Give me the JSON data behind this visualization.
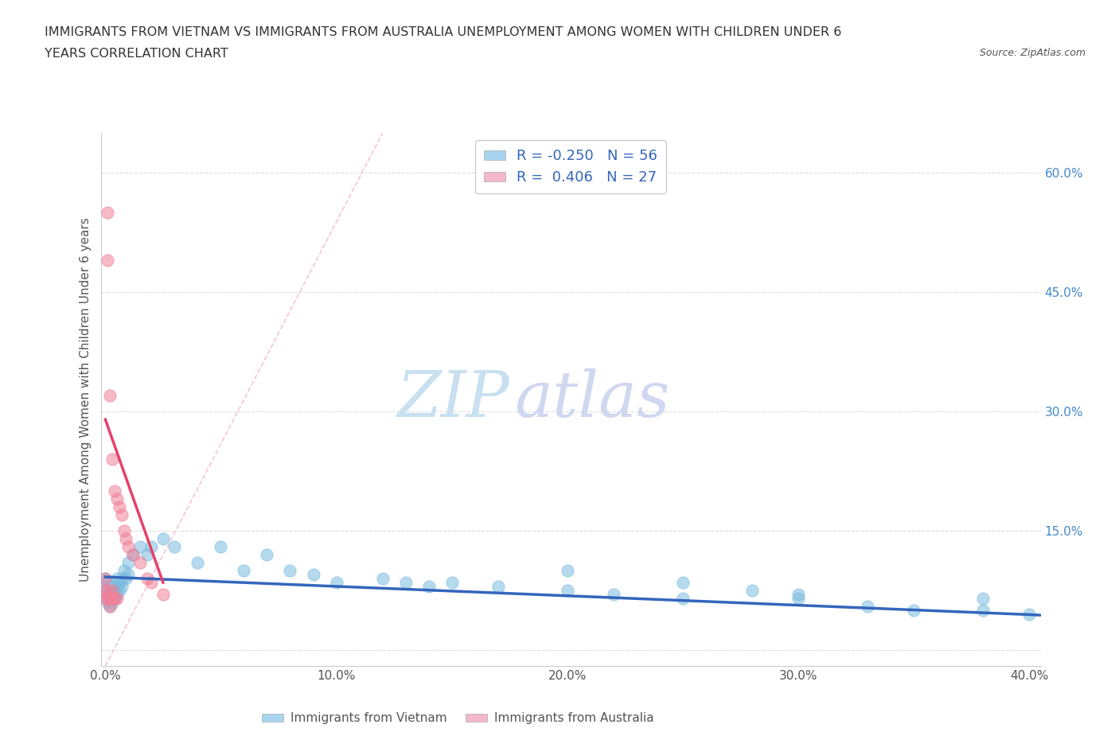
{
  "title_line1": "IMMIGRANTS FROM VIETNAM VS IMMIGRANTS FROM AUSTRALIA UNEMPLOYMENT AMONG WOMEN WITH CHILDREN UNDER 6",
  "title_line2": "YEARS CORRELATION CHART",
  "source": "Source: ZipAtlas.com",
  "xlabel_bottom1": "Immigrants from Vietnam",
  "xlabel_bottom2": "Immigrants from Australia",
  "ylabel": "Unemployment Among Women with Children Under 6 years",
  "xlim": [
    -0.002,
    0.405
  ],
  "ylim": [
    -0.02,
    0.65
  ],
  "yticks": [
    0.0,
    0.15,
    0.3,
    0.45,
    0.6
  ],
  "ytick_labels": [
    "",
    "15.0%",
    "30.0%",
    "45.0%",
    "60.0%"
  ],
  "xticks": [
    0.0,
    0.1,
    0.2,
    0.3,
    0.4
  ],
  "xtick_labels": [
    "0.0%",
    "10.0%",
    "20.0%",
    "30.0%",
    "40.0%"
  ],
  "legend_R1": "R = -0.250",
  "legend_N1": "N = 56",
  "legend_R2": "R =  0.406",
  "legend_N2": "N = 27",
  "legend_entry1_color": "#a8d4f0",
  "legend_entry2_color": "#f5b8cb",
  "scatter_vietnam_color": "#7bbcdf",
  "scatter_australia_color": "#f08098",
  "trend_vietnam_color": "#3366bb",
  "trend_australia_color": "#e8406a",
  "ref_line_color": "#f0b8cb",
  "grid_color": "#dddddd",
  "watermark_zip_color": "#c8e0f0",
  "watermark_atlas_color": "#d0d8f0",
  "background_color": "#ffffff",
  "tick_label_color_x": "#555555",
  "tick_label_color_y": "#4488cc",
  "ylabel_color": "#555555",
  "title_color": "#333333",
  "vietnam_x": [
    0.0,
    0.0,
    0.001,
    0.001,
    0.001,
    0.002,
    0.002,
    0.002,
    0.002,
    0.003,
    0.003,
    0.003,
    0.004,
    0.004,
    0.005,
    0.005,
    0.005,
    0.006,
    0.006,
    0.007,
    0.007,
    0.008,
    0.009,
    0.01,
    0.01,
    0.012,
    0.015,
    0.018,
    0.02,
    0.025,
    0.03,
    0.04,
    0.05,
    0.06,
    0.07,
    0.08,
    0.09,
    0.1,
    0.12,
    0.13,
    0.14,
    0.15,
    0.17,
    0.2,
    0.22,
    0.25,
    0.28,
    0.3,
    0.33,
    0.35,
    0.38,
    0.4,
    0.2,
    0.25,
    0.3,
    0.38
  ],
  "vietnam_y": [
    0.09,
    0.075,
    0.085,
    0.07,
    0.06,
    0.08,
    0.075,
    0.065,
    0.055,
    0.08,
    0.07,
    0.06,
    0.075,
    0.065,
    0.09,
    0.08,
    0.07,
    0.085,
    0.075,
    0.09,
    0.08,
    0.1,
    0.09,
    0.11,
    0.095,
    0.12,
    0.13,
    0.12,
    0.13,
    0.14,
    0.13,
    0.11,
    0.13,
    0.1,
    0.12,
    0.1,
    0.095,
    0.085,
    0.09,
    0.085,
    0.08,
    0.085,
    0.08,
    0.075,
    0.07,
    0.065,
    0.075,
    0.065,
    0.055,
    0.05,
    0.05,
    0.045,
    0.1,
    0.085,
    0.07,
    0.065
  ],
  "australia_x": [
    0.0,
    0.0,
    0.0,
    0.001,
    0.001,
    0.001,
    0.001,
    0.002,
    0.002,
    0.002,
    0.003,
    0.003,
    0.003,
    0.004,
    0.004,
    0.005,
    0.005,
    0.006,
    0.007,
    0.008,
    0.009,
    0.01,
    0.012,
    0.015,
    0.018,
    0.02,
    0.025
  ],
  "australia_y": [
    0.09,
    0.075,
    0.065,
    0.55,
    0.49,
    0.075,
    0.065,
    0.32,
    0.065,
    0.055,
    0.24,
    0.075,
    0.065,
    0.2,
    0.065,
    0.19,
    0.065,
    0.18,
    0.17,
    0.15,
    0.14,
    0.13,
    0.12,
    0.11,
    0.09,
    0.085,
    0.07
  ],
  "trend_viet_x0": 0.0,
  "trend_viet_x1": 0.405,
  "trend_viet_y0": 0.092,
  "trend_viet_y1": 0.044,
  "trend_aust_x0": 0.0,
  "trend_aust_x1": 0.025,
  "trend_aust_y0": 0.29,
  "trend_aust_y1": 0.085,
  "ref_line_x0": 0.0,
  "ref_line_x1": 0.12,
  "ref_line_y0": -0.02,
  "ref_line_y1": 0.65
}
